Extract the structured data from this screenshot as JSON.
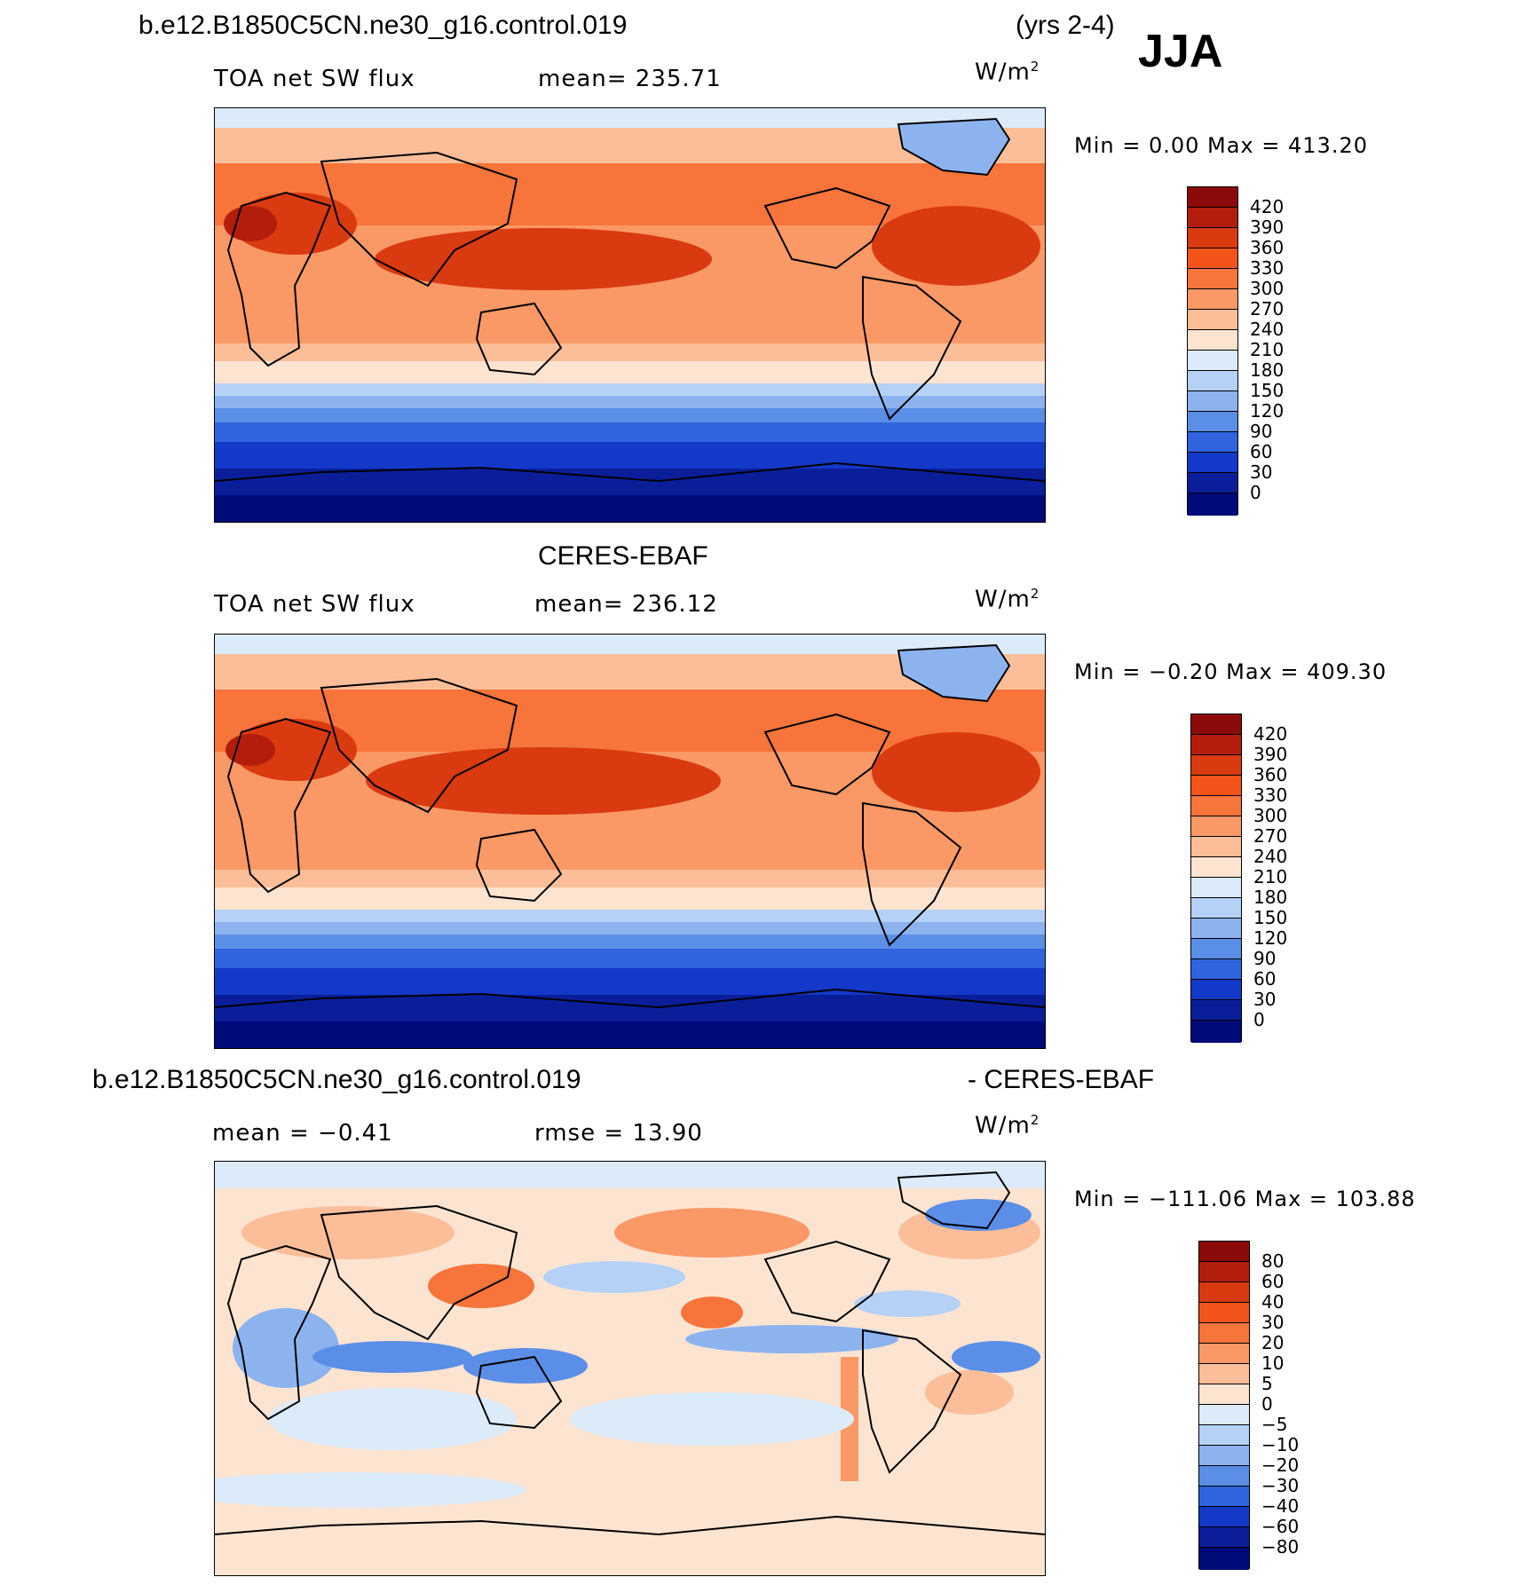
{
  "season": "JJA",
  "years": "(yrs 2-4)",
  "panels": [
    {
      "header": "b.e12.B1850C5CN.ne30_g16.control.019",
      "field": "TOA net SW flux",
      "stat": "mean=  235.71",
      "units": "W/m",
      "units_sup": "2",
      "minmax": "Min =    0.00  Max = 413.20",
      "colorbar": {
        "labels": [
          "420",
          "390",
          "360",
          "330",
          "300",
          "270",
          "240",
          "210",
          "180",
          "150",
          "120",
          "90",
          "60",
          "30",
          "0"
        ],
        "colors": [
          "#8b0a0a",
          "#b31d0b",
          "#d93a10",
          "#f2541a",
          "#f7743a",
          "#fa9966",
          "#fbbe99",
          "#fde4d1",
          "#dcebfa",
          "#b5d1f5",
          "#8db3ef",
          "#5b8ee6",
          "#2f64de",
          "#1438c8",
          "#0a1e9a",
          "#000a78"
        ]
      }
    },
    {
      "header": "CERES-EBAF",
      "field": "TOA net SW flux",
      "stat": "mean=  236.12",
      "units": "W/m",
      "units_sup": "2",
      "minmax": "Min =   −0.20  Max = 409.30",
      "colorbar": {
        "labels": [
          "420",
          "390",
          "360",
          "330",
          "300",
          "270",
          "240",
          "210",
          "180",
          "150",
          "120",
          "90",
          "60",
          "30",
          "0"
        ],
        "colors": [
          "#8b0a0a",
          "#b31d0b",
          "#d93a10",
          "#f2541a",
          "#f7743a",
          "#fa9966",
          "#fbbe99",
          "#fde4d1",
          "#dcebfa",
          "#b5d1f5",
          "#8db3ef",
          "#5b8ee6",
          "#2f64de",
          "#1438c8",
          "#0a1e9a",
          "#000a78"
        ]
      }
    },
    {
      "header": "b.e12.B1850C5CN.ne30_g16.control.019",
      "header_right": "- CERES-EBAF",
      "field": "mean =   −0.41",
      "stat": "rmse =   13.90",
      "units": "W/m",
      "units_sup": "2",
      "minmax": "Min = −111.06  Max = 103.88",
      "colorbar": {
        "labels": [
          "80",
          "60",
          "40",
          "30",
          "20",
          "10",
          "5",
          "0",
          "−5",
          "−10",
          "−20",
          "−30",
          "−40",
          "−60",
          "−80"
        ],
        "colors": [
          "#8b0a0a",
          "#b31d0b",
          "#d93a10",
          "#f2541a",
          "#f7743a",
          "#fa9966",
          "#fbbe99",
          "#fde4d1",
          "#dcebfa",
          "#b5d1f5",
          "#8db3ef",
          "#5b8ee6",
          "#2f64de",
          "#1438c8",
          "#0a1e9a",
          "#000a78"
        ]
      }
    }
  ]
}
